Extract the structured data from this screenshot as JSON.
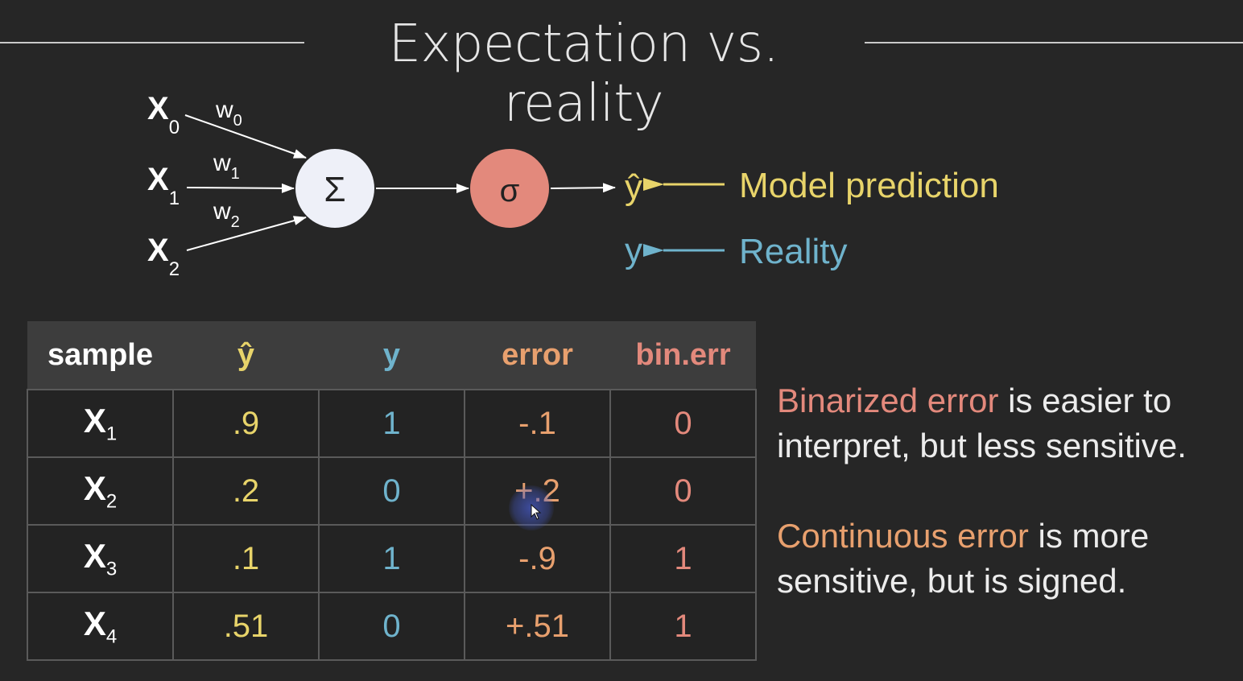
{
  "title": "Expectation vs. reality",
  "diagram": {
    "inputs": [
      {
        "label": "X",
        "sub": "0",
        "weight": "w",
        "weight_sub": "0"
      },
      {
        "label": "X",
        "sub": "1",
        "weight": "w",
        "weight_sub": "1"
      },
      {
        "label": "X",
        "sub": "2",
        "weight": "w",
        "weight_sub": "2"
      }
    ],
    "sum_symbol": "Σ",
    "activation_symbol": "σ",
    "output_symbol": "ŷ",
    "prediction_label": "Model prediction",
    "reality_symbol": "y",
    "reality_label": "Reality",
    "colors": {
      "prediction": "#e8d46a",
      "reality": "#6fb3cc",
      "sigma_node": "#e3897c",
      "sum_node": "#eef0f8"
    }
  },
  "table": {
    "headers": [
      "sample",
      "ŷ",
      "y",
      "error",
      "bin.err"
    ],
    "rows": [
      {
        "sample": "X",
        "sub": "1",
        "yhat": ".9",
        "y": "1",
        "error": "-.1",
        "bin_err": "0"
      },
      {
        "sample": "X",
        "sub": "2",
        "yhat": ".2",
        "y": "0",
        "error": "+.2",
        "bin_err": "0"
      },
      {
        "sample": "X",
        "sub": "3",
        "yhat": ".1",
        "y": "1",
        "error": "-.9",
        "bin_err": "1"
      },
      {
        "sample": "X",
        "sub": "4",
        "yhat": ".51",
        "y": "0",
        "error": "+.51",
        "bin_err": "1"
      }
    ]
  },
  "notes": {
    "binarized_highlight": "Binarized error",
    "binarized_rest": " is easier to interpret, but less sensitive.",
    "continuous_highlight": "Continuous error",
    "continuous_rest": " is more sensitive, but is signed."
  }
}
